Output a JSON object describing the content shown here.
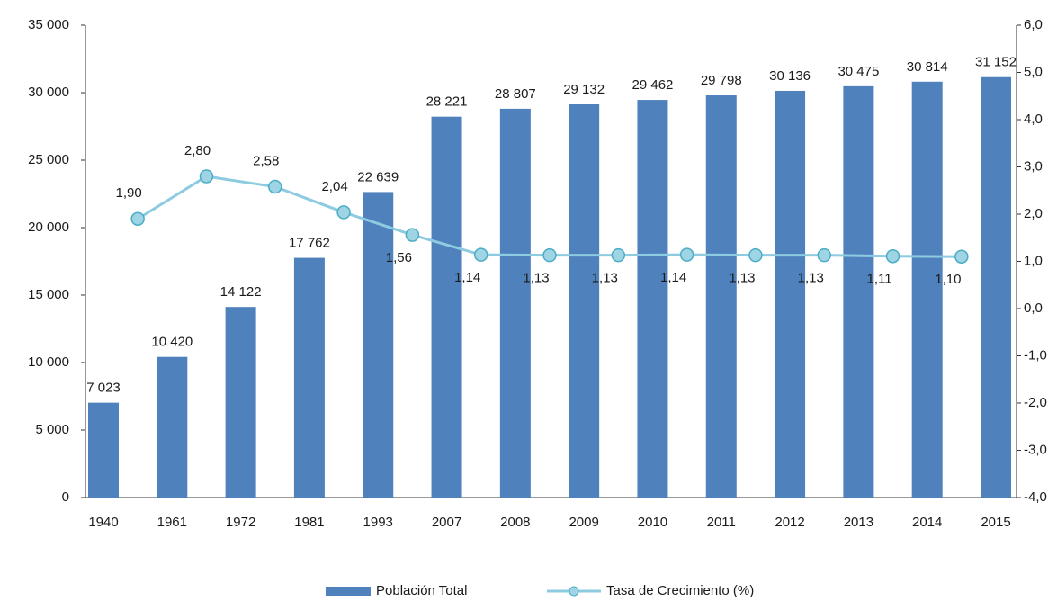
{
  "chart_data": {
    "type": "bar-line",
    "categories": [
      "1940",
      "1961",
      "1972",
      "1981",
      "1993",
      "2007",
      "2008",
      "2009",
      "2010",
      "2011",
      "2012",
      "2013",
      "2014",
      "2015"
    ],
    "series": [
      {
        "name": "Población Total",
        "type": "bar",
        "color": "#4f81bd",
        "values": [
          7023,
          10420,
          14122,
          17762,
          22639,
          28221,
          28807,
          29132,
          29462,
          29798,
          30136,
          30475,
          30814,
          31152
        ],
        "value_labels": [
          "7 023",
          "10 420",
          "14 122",
          "17 762",
          "22 639",
          "28 221",
          "28 807",
          "29 132",
          "29 462",
          "29 798",
          "30 136",
          "30 475",
          "30 814",
          "31 152"
        ]
      },
      {
        "name": "Tasa de Crecimiento (%)",
        "type": "line",
        "axis": "y2",
        "color": "#8ccbe0",
        "values": [
          null,
          1.9,
          2.8,
          2.58,
          2.04,
          1.56,
          1.14,
          1.13,
          1.13,
          1.14,
          1.13,
          1.13,
          1.11,
          1.1
        ],
        "value_labels": [
          null,
          "1,90",
          "2,80",
          "2,58",
          "2,04",
          "1,56",
          "1,14",
          "1,13",
          "1,13",
          "1,14",
          "1,13",
          "1,13",
          "1,11",
          "1,10"
        ]
      }
    ],
    "ylim": [
      0,
      35000
    ],
    "yticks": [
      0,
      {
        "value": 5000,
        "label": "5 000"
      },
      {
        "value": 10000,
        "label": "10 000"
      },
      {
        "value": 15000,
        "label": "15 000"
      },
      {
        "value": 20000,
        "label": "20 000"
      },
      {
        "value": 25000,
        "label": "25 000"
      },
      {
        "value": 30000,
        "label": "30 000"
      },
      {
        "value": 35000,
        "label": "35 000"
      }
    ],
    "y2lim": [
      -4,
      6
    ],
    "y2ticks": [
      {
        "value": -4,
        "label": "-4,0"
      },
      {
        "value": -3,
        "label": "-3,0"
      },
      {
        "value": -2,
        "label": "-2,0"
      },
      {
        "value": -1,
        "label": "-1,0"
      },
      {
        "value": 0,
        "label": "0,0"
      },
      {
        "value": 1,
        "label": "1,0"
      },
      {
        "value": 2,
        "label": "2,0"
      },
      {
        "value": 3,
        "label": "3,0"
      },
      {
        "value": 4,
        "label": "4,0"
      },
      {
        "value": 5,
        "label": "5,0"
      },
      {
        "value": 6,
        "label": "6,0"
      }
    ],
    "legend": "bottom"
  }
}
